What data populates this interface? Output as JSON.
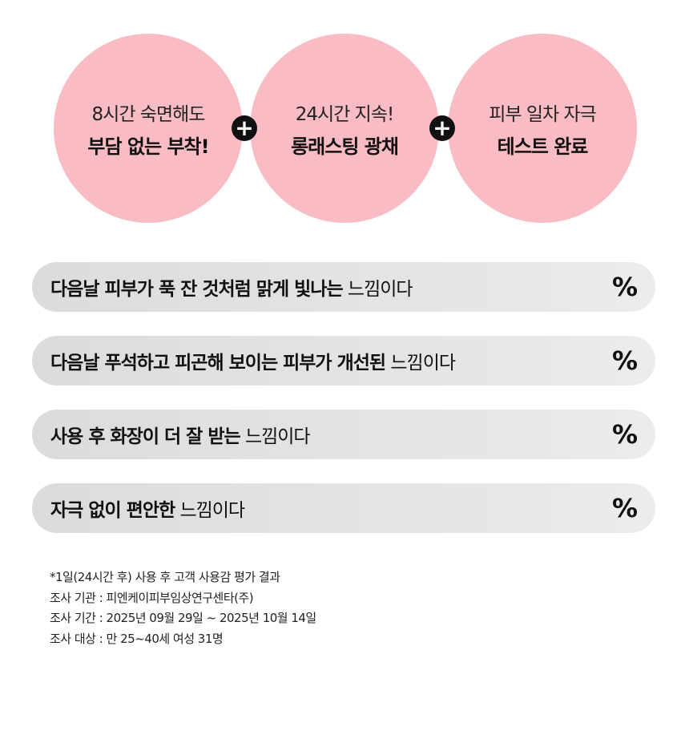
{
  "circles": [
    {
      "line1": "8시간 숙면해도",
      "line2": "부담 없는 부착!"
    },
    {
      "line1": "24시간 지속!",
      "line2": "롱래스팅 광채"
    },
    {
      "line1": "피부 일차 자극",
      "line2": "테스트 완료"
    }
  ],
  "plus_symbol": "+",
  "bars": [
    {
      "bold": "다음날 피부가 푹 잔 것처럼 맑게 빛나는",
      "normal": " 느낌이다",
      "percent": "%"
    },
    {
      "bold": "다음날 푸석하고 피곤해 보이는 피부가 개선된",
      "normal": " 느낌이다",
      "percent": "%"
    },
    {
      "bold": "사용 후 화장이 더 잘 받는",
      "normal": " 느낌이다",
      "percent": "%"
    },
    {
      "bold": "자극 없이 편안한",
      "normal": " 느낌이다",
      "percent": "%"
    }
  ],
  "notes": [
    "*1일(24시간 후) 사용 후 고객 사용감 평가 결과",
    "조사 기관 : 피엔케이피부임상연구센타(주)",
    "조사 기간 : 2025년 09월 29일 ~ 2025년 10월 14일",
    "조사 대상 : 만 25~40세 여성 31명"
  ]
}
